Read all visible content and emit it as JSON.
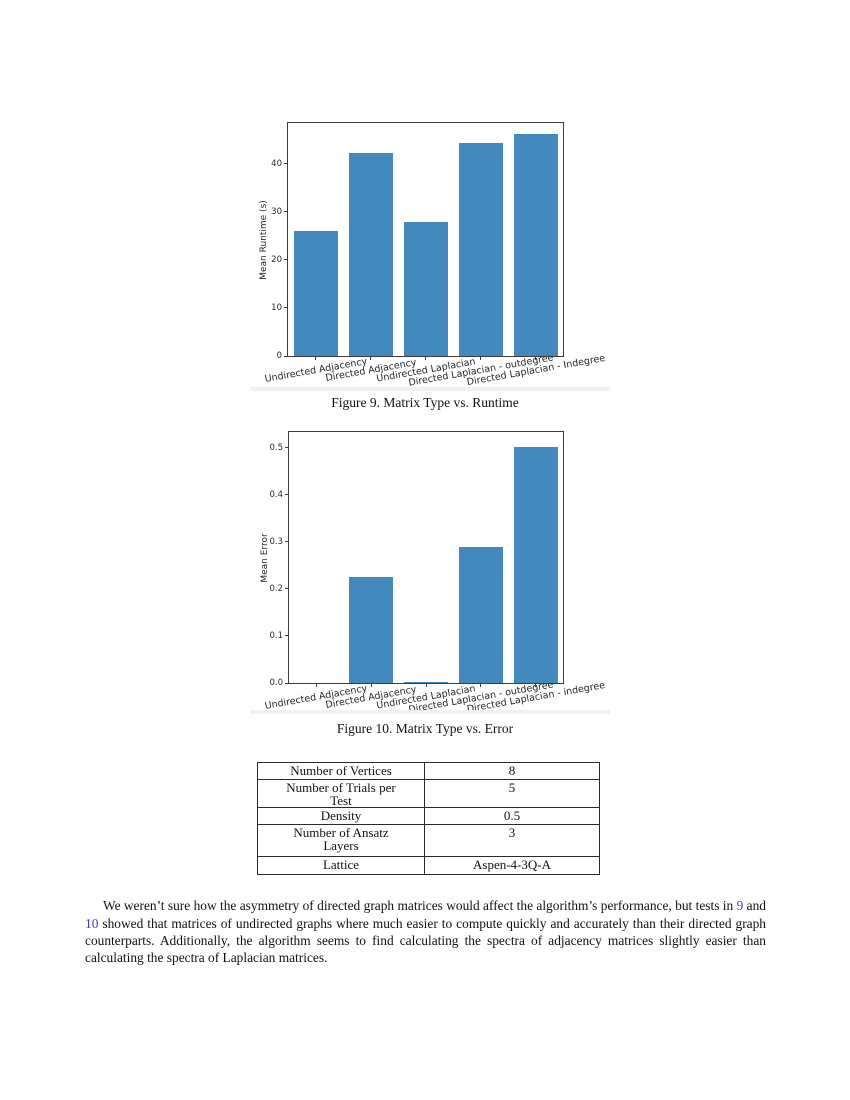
{
  "colors": {
    "bar": "#4389be",
    "link": "#3b3bd4",
    "axis": "#3c3c3c",
    "figure_band": "#f1f1f1"
  },
  "chart_data": [
    {
      "type": "bar",
      "categories": [
        "Undirected Adjacency",
        "Directed Adjacency",
        "Undirected Laplacian",
        "Directed Laplacian - outdegree",
        "Directed Laplacian - Indegree"
      ],
      "values": [
        26.0,
        42.2,
        28.0,
        44.4,
        46.3
      ],
      "title": "",
      "xlabel": "",
      "ylabel": "Mean Runtime (s)",
      "ylim": [
        0,
        48.5
      ],
      "yticks": [
        {
          "v": 0,
          "label": "0"
        },
        {
          "v": 10,
          "label": "10"
        },
        {
          "v": 20,
          "label": "20"
        },
        {
          "v": 30,
          "label": "30"
        },
        {
          "v": 40,
          "label": "40"
        }
      ],
      "bar_color": "#4389be",
      "bar_width_ratio": 0.8,
      "grid": false,
      "legend": "none",
      "caption": "Figure 9. Matrix Type vs. Runtime"
    },
    {
      "type": "bar",
      "categories": [
        "Undirected Adjacency",
        "Directed Adjacency",
        "Undirected Laplacian",
        "Directed Laplacian - outdegree",
        "Directed Laplacian - indegree"
      ],
      "values": [
        0.0,
        0.226,
        0.003,
        0.29,
        0.503
      ],
      "title": "",
      "xlabel": "",
      "ylabel": "Mean Error",
      "ylim": [
        0,
        0.534
      ],
      "yticks": [
        {
          "v": 0.0,
          "label": "0.0"
        },
        {
          "v": 0.1,
          "label": "0.1"
        },
        {
          "v": 0.2,
          "label": "0.2"
        },
        {
          "v": 0.3,
          "label": "0.3"
        },
        {
          "v": 0.4,
          "label": "0.4"
        },
        {
          "v": 0.5,
          "label": "0.5"
        }
      ],
      "bar_color": "#4389be",
      "bar_width_ratio": 0.8,
      "grid": false,
      "legend": "none",
      "caption": "Figure 10. Matrix Type vs. Error"
    }
  ],
  "table": {
    "rows": [
      {
        "label": "Number of Vertices",
        "value": "8"
      },
      {
        "label": "Number of Trials per\nTest",
        "value": "5"
      },
      {
        "label": "Density",
        "value": "0.5"
      },
      {
        "label": "Number of Ansatz\nLayers",
        "value": "3"
      },
      {
        "label": "Lattice",
        "value": "Aspen-4-3Q-A"
      }
    ]
  },
  "paragraph": {
    "segments": [
      {
        "text": "We weren’t sure how the asymmetry of directed graph matrices would affect the algorithm’s performance, but tests in ",
        "link": false
      },
      {
        "text": "9",
        "link": true
      },
      {
        "text": " and ",
        "link": false
      },
      {
        "text": "10",
        "link": true
      },
      {
        "text": " showed that matrices of undirected graphs where much easier to compute quickly and accurately than their directed graph counterparts.  Additionally, the algorithm seems to find calculating the spectra of adjacency matrices slightly easier than calculating the spectra of Laplacian matrices.",
        "link": false
      }
    ]
  }
}
